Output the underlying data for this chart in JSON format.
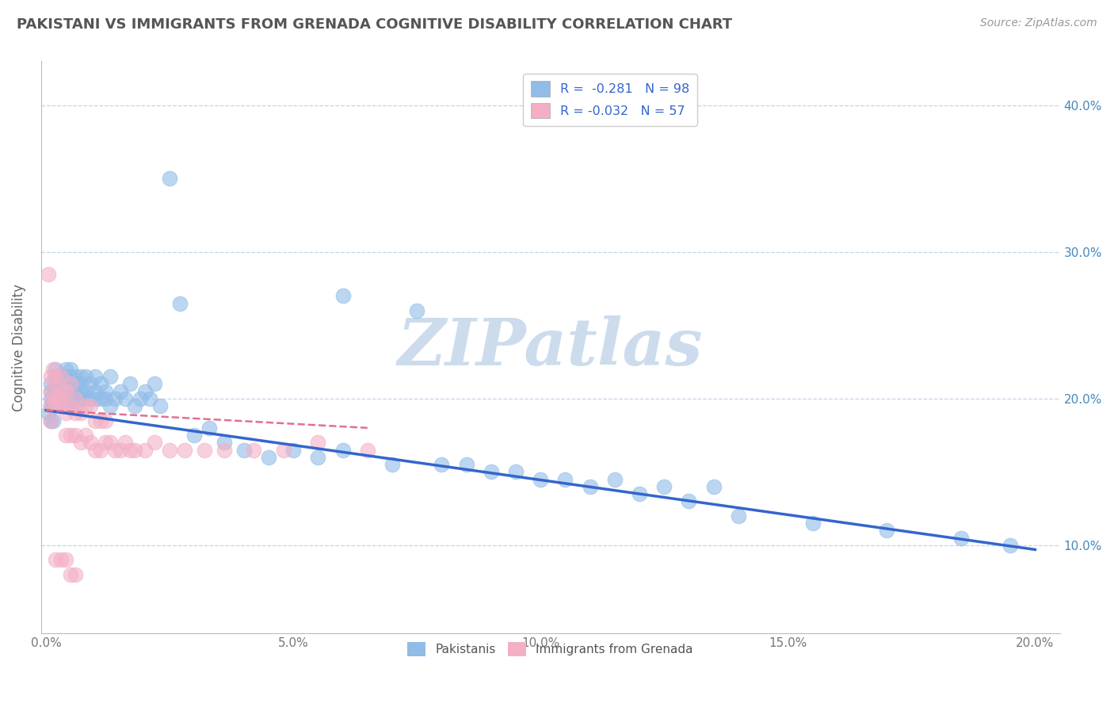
{
  "title": "PAKISTANI VS IMMIGRANTS FROM GRENADA COGNITIVE DISABILITY CORRELATION CHART",
  "source_text": "Source: ZipAtlas.com",
  "ylabel": "Cognitive Disability",
  "xlim": [
    -0.001,
    0.205
  ],
  "ylim": [
    0.04,
    0.43
  ],
  "xticks": [
    0.0,
    0.05,
    0.1,
    0.15,
    0.2
  ],
  "xtick_labels": [
    "0.0%",
    "5.0%",
    "10.0%",
    "15.0%",
    "20.0%"
  ],
  "yticks": [
    0.1,
    0.2,
    0.3,
    0.4
  ],
  "right_ytick_labels": [
    "10.0%",
    "20.0%",
    "30.0%",
    "40.0%"
  ],
  "legend_r1": "R =  -0.281",
  "legend_n1": "N = 98",
  "legend_r2": "R = -0.032",
  "legend_n2": "N = 57",
  "series1_color": "#90bce8",
  "series2_color": "#f4afc5",
  "trendline1_color": "#3366cc",
  "trendline2_color": "#e07090",
  "background_color": "#ffffff",
  "grid_color": "#c0d4e8",
  "watermark": "ZIPatlas",
  "watermark_color": "#ccdcec",
  "pak_x": [
    0.0005,
    0.001,
    0.001,
    0.001,
    0.001,
    0.001,
    0.0015,
    0.0015,
    0.0015,
    0.002,
    0.002,
    0.002,
    0.002,
    0.002,
    0.002,
    0.0025,
    0.0025,
    0.003,
    0.003,
    0.003,
    0.003,
    0.003,
    0.003,
    0.004,
    0.004,
    0.004,
    0.004,
    0.004,
    0.004,
    0.005,
    0.005,
    0.005,
    0.005,
    0.005,
    0.005,
    0.006,
    0.006,
    0.006,
    0.006,
    0.006,
    0.007,
    0.007,
    0.007,
    0.007,
    0.008,
    0.008,
    0.008,
    0.009,
    0.009,
    0.01,
    0.01,
    0.01,
    0.011,
    0.011,
    0.012,
    0.012,
    0.013,
    0.013,
    0.014,
    0.015,
    0.016,
    0.017,
    0.018,
    0.019,
    0.02,
    0.021,
    0.022,
    0.023,
    0.025,
    0.027,
    0.03,
    0.033,
    0.036,
    0.04,
    0.045,
    0.05,
    0.055,
    0.06,
    0.07,
    0.08,
    0.09,
    0.1,
    0.11,
    0.12,
    0.13,
    0.14,
    0.155,
    0.17,
    0.185,
    0.195,
    0.06,
    0.075,
    0.085,
    0.095,
    0.105,
    0.115,
    0.125,
    0.135
  ],
  "pak_y": [
    0.19,
    0.195,
    0.2,
    0.185,
    0.205,
    0.21,
    0.195,
    0.2,
    0.185,
    0.2,
    0.21,
    0.195,
    0.205,
    0.22,
    0.215,
    0.2,
    0.21,
    0.195,
    0.205,
    0.215,
    0.2,
    0.21,
    0.195,
    0.205,
    0.22,
    0.2,
    0.215,
    0.195,
    0.21,
    0.2,
    0.215,
    0.205,
    0.2,
    0.22,
    0.195,
    0.205,
    0.2,
    0.215,
    0.21,
    0.195,
    0.2,
    0.215,
    0.205,
    0.21,
    0.2,
    0.215,
    0.205,
    0.2,
    0.21,
    0.2,
    0.215,
    0.205,
    0.2,
    0.21,
    0.205,
    0.2,
    0.215,
    0.195,
    0.2,
    0.205,
    0.2,
    0.21,
    0.195,
    0.2,
    0.205,
    0.2,
    0.21,
    0.195,
    0.35,
    0.265,
    0.175,
    0.18,
    0.17,
    0.165,
    0.16,
    0.165,
    0.16,
    0.165,
    0.155,
    0.155,
    0.15,
    0.145,
    0.14,
    0.135,
    0.13,
    0.12,
    0.115,
    0.11,
    0.105,
    0.1,
    0.27,
    0.26,
    0.155,
    0.15,
    0.145,
    0.145,
    0.14,
    0.14
  ],
  "gren_x": [
    0.0005,
    0.001,
    0.001,
    0.001,
    0.001,
    0.0015,
    0.0015,
    0.002,
    0.002,
    0.002,
    0.002,
    0.003,
    0.003,
    0.003,
    0.003,
    0.004,
    0.004,
    0.004,
    0.005,
    0.005,
    0.005,
    0.006,
    0.006,
    0.006,
    0.007,
    0.007,
    0.008,
    0.008,
    0.009,
    0.009,
    0.01,
    0.01,
    0.011,
    0.011,
    0.012,
    0.012,
    0.013,
    0.014,
    0.015,
    0.016,
    0.017,
    0.018,
    0.02,
    0.022,
    0.025,
    0.028,
    0.032,
    0.036,
    0.042,
    0.048,
    0.055,
    0.065,
    0.002,
    0.003,
    0.004,
    0.005,
    0.006
  ],
  "gren_y": [
    0.285,
    0.205,
    0.195,
    0.215,
    0.185,
    0.22,
    0.2,
    0.215,
    0.2,
    0.195,
    0.21,
    0.195,
    0.215,
    0.205,
    0.2,
    0.175,
    0.19,
    0.205,
    0.175,
    0.195,
    0.21,
    0.175,
    0.19,
    0.2,
    0.17,
    0.19,
    0.175,
    0.195,
    0.17,
    0.195,
    0.165,
    0.185,
    0.165,
    0.185,
    0.17,
    0.185,
    0.17,
    0.165,
    0.165,
    0.17,
    0.165,
    0.165,
    0.165,
    0.17,
    0.165,
    0.165,
    0.165,
    0.165,
    0.165,
    0.165,
    0.17,
    0.165,
    0.09,
    0.09,
    0.09,
    0.08,
    0.08
  ],
  "trendline1_x0": 0.0,
  "trendline1_y0": 0.192,
  "trendline1_x1": 0.2,
  "trendline1_y1": 0.097,
  "trendline2_x0": 0.0,
  "trendline2_y0": 0.192,
  "trendline2_x1": 0.065,
  "trendline2_y1": 0.18
}
